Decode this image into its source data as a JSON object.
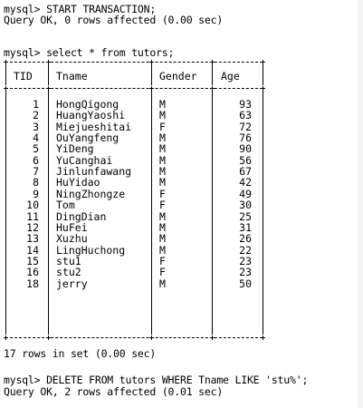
{
  "terminal": {
    "line1": "mysql> START TRANSACTION;",
    "line2": "Query OK, 0 rows affected (0.00 sec)",
    "line3": "mysql> select * from tutors;",
    "footer": "17 rows in set (0.00 sec)",
    "line4": "mysql> DELETE FROM tutors WHERE Tname LIKE 'stu%';",
    "line5": "Query OK, 2 rows affected (0.01 sec)"
  },
  "table": {
    "headers": [
      "TID",
      "Tname",
      "Gender",
      "Age"
    ],
    "rows": [
      [
        "1",
        "HongQigong",
        "M",
        "93"
      ],
      [
        "2",
        "HuangYaoshi",
        "M",
        "63"
      ],
      [
        "3",
        "Miejueshitai",
        "F",
        "72"
      ],
      [
        "4",
        "OuYangfeng",
        "M",
        "76"
      ],
      [
        "5",
        "YiDeng",
        "M",
        "90"
      ],
      [
        "6",
        "YuCanghai",
        "M",
        "56"
      ],
      [
        "7",
        "Jinlunfawang",
        "M",
        "67"
      ],
      [
        "8",
        "HuYidao",
        "M",
        "42"
      ],
      [
        "9",
        "NingZhongze",
        "F",
        "49"
      ],
      [
        "10",
        "Tom",
        "F",
        "30"
      ],
      [
        "11",
        "DingDian",
        "M",
        "25"
      ],
      [
        "12",
        "HuFei",
        "M",
        "31"
      ],
      [
        "13",
        "Xuzhu",
        "M",
        "26"
      ],
      [
        "14",
        "LingHuchong",
        "M",
        "22"
      ],
      [
        "15",
        "stu1",
        "F",
        "23"
      ],
      [
        "16",
        "stu2",
        "F",
        "23"
      ],
      [
        "18",
        "jerry",
        "M",
        "50"
      ]
    ]
  }
}
